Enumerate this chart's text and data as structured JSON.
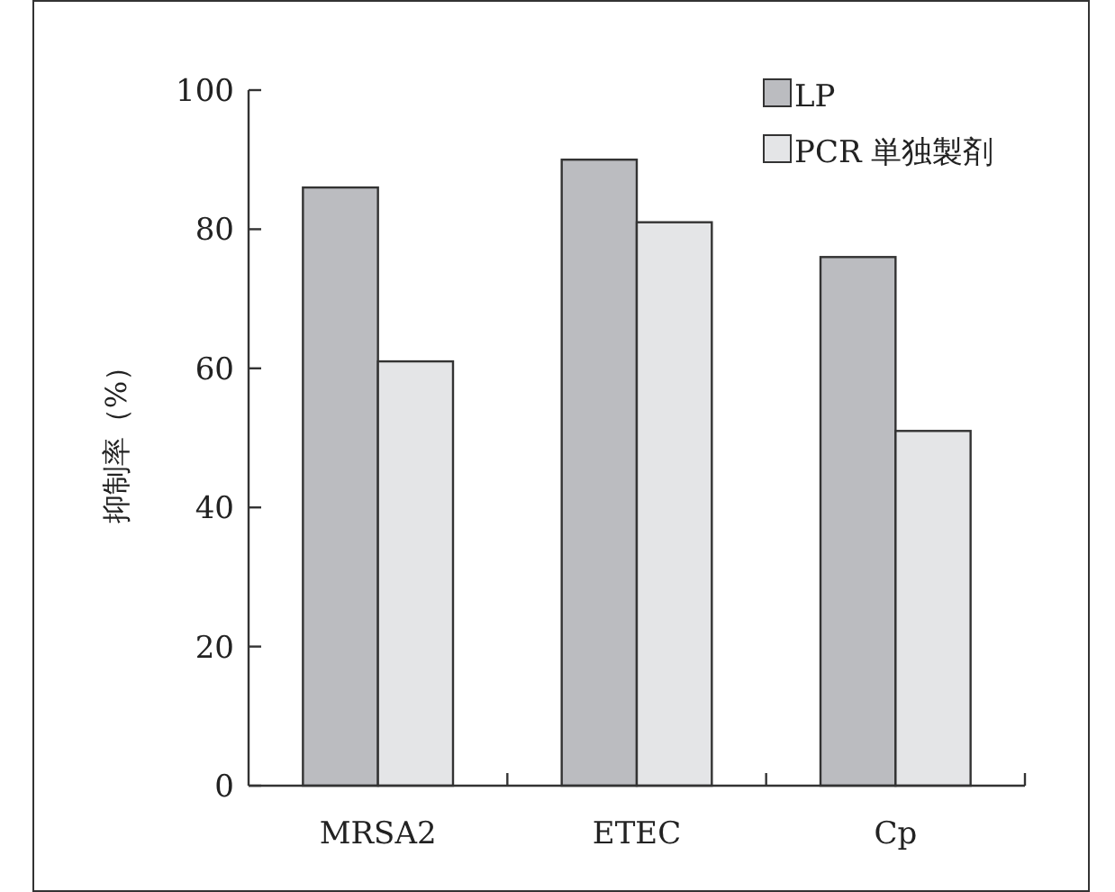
{
  "chart_data": {
    "type": "bar",
    "ylabel": "抑制率（%）",
    "categories": [
      "MRSA2",
      "ETEC",
      "Cp"
    ],
    "series": [
      {
        "name": "LP",
        "color": "#bbbcc0",
        "values": [
          86,
          90,
          76
        ]
      },
      {
        "name": "PCR 単独製剤",
        "color": "#e4e5e7",
        "values": [
          61,
          81,
          51
        ]
      }
    ],
    "ylim": [
      0,
      100
    ],
    "yticks": [
      0,
      20,
      40,
      60,
      80,
      100
    ],
    "legend": "top right",
    "grid": false
  }
}
